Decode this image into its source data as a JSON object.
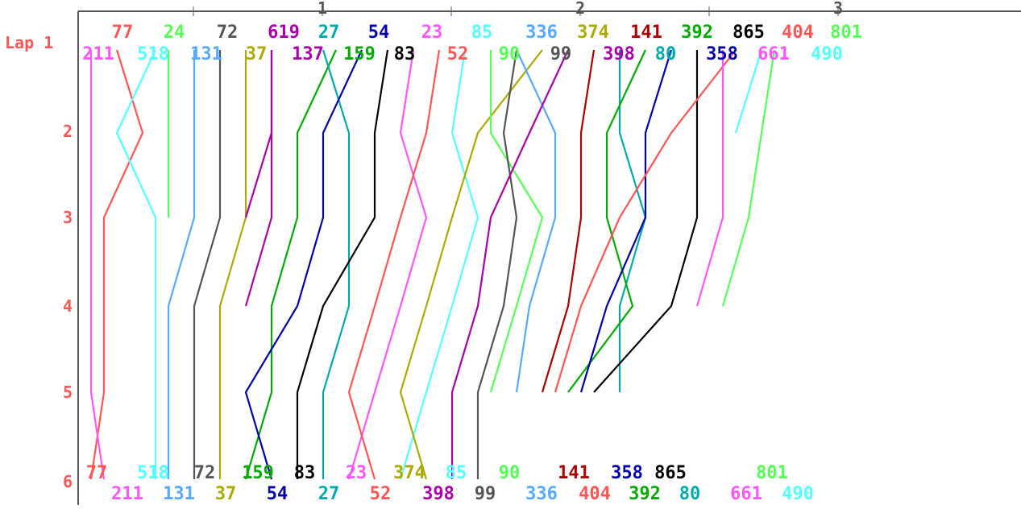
{
  "chart_data": {
    "type": "line",
    "title": "",
    "xlabel": "",
    "ylabel": "Lap",
    "y_label_text": "Lap 1",
    "y_ticks": [
      "2",
      "3",
      "4",
      "5",
      "6"
    ],
    "top_ticks": [
      "1",
      "2",
      "3"
    ],
    "y_color": "#ff5555",
    "top_numbers": [
      "77",
      "24",
      "72",
      "619",
      "27",
      "54",
      "23",
      "85",
      "336",
      "374",
      "141",
      "392",
      "865",
      "404",
      "801"
    ],
    "start_numbers": [
      "211",
      "518",
      "131",
      "37",
      "137",
      "159",
      "83",
      "52",
      "90",
      "99",
      "398",
      "80",
      "358",
      "661",
      "490"
    ],
    "end_row1": [
      "77",
      "518",
      "72",
      "159",
      "83",
      "23",
      "374",
      "85",
      "90",
      "141",
      "358",
      "865",
      "801"
    ],
    "end_row2": [
      "211",
      "131",
      "37",
      "54",
      "27",
      "52",
      "398",
      "99",
      "336",
      "404",
      "392",
      "80",
      "661",
      "490"
    ],
    "series": [
      {
        "name": "77",
        "color": "#ff5555",
        "slots": [
          3,
          5,
          2,
          2,
          2,
          1
        ]
      },
      {
        "name": "211",
        "color": "#ff55ff",
        "slots": [
          1,
          1,
          1,
          1,
          1,
          2
        ]
      },
      {
        "name": "518",
        "color": "#55ffff",
        "slots": [
          6,
          3,
          6,
          6,
          6,
          6
        ]
      },
      {
        "name": "24",
        "color": "#55ff55",
        "slots": [
          7,
          7,
          7
        ]
      },
      {
        "name": "131",
        "color": "#55aaff",
        "slots": [
          9,
          9,
          9,
          7,
          7,
          7
        ]
      },
      {
        "name": "72",
        "color": "#555555",
        "slots": [
          11,
          11,
          11,
          9,
          9,
          9
        ]
      },
      {
        "name": "37",
        "color": "#aaaa00",
        "slots": [
          13,
          13,
          13,
          11,
          11,
          11
        ]
      },
      {
        "name": "619",
        "color": "#aa00aa",
        "slots": [
          15,
          15,
          15,
          13
        ]
      },
      {
        "name": "137",
        "color": "#aa00aa",
        "slots": [
          15,
          15,
          13
        ]
      },
      {
        "name": "159",
        "color": "#00aa00",
        "slots": [
          20,
          17,
          17,
          15,
          15,
          13
        ]
      },
      {
        "name": "27",
        "color": "#00aaaa",
        "slots": [
          19,
          21,
          21,
          21,
          19,
          19
        ]
      },
      {
        "name": "54",
        "color": "#0000aa",
        "slots": [
          22,
          19,
          19,
          17,
          13,
          15
        ]
      },
      {
        "name": "83",
        "color": "#000000",
        "slots": [
          24,
          23,
          23,
          19,
          17,
          17
        ]
      },
      {
        "name": "23",
        "color": "#ff55ff",
        "slots": [
          26,
          25,
          27,
          25,
          23,
          21
        ]
      },
      {
        "name": "52",
        "color": "#ff5555",
        "slots": [
          28,
          27,
          25,
          23,
          21,
          23
        ]
      },
      {
        "name": "85",
        "color": "#55ffff",
        "slots": [
          30,
          29,
          31,
          29,
          27,
          25
        ]
      },
      {
        "name": "374",
        "color": "#aaaa00",
        "slots": [
          36,
          31,
          29,
          27,
          25,
          27
        ]
      },
      {
        "name": "90",
        "color": "#55ff55",
        "slots": [
          32,
          32,
          36,
          34,
          32
        ]
      },
      {
        "name": "99",
        "color": "#555555",
        "slots": [
          34,
          33,
          34,
          33,
          31,
          31
        ]
      },
      {
        "name": "336",
        "color": "#55aaff",
        "slots": [
          34,
          37,
          37,
          35,
          34
        ]
      },
      {
        "name": "398",
        "color": "#aa00aa",
        "slots": [
          38,
          35,
          32,
          31,
          29,
          29
        ]
      },
      {
        "name": "141",
        "color": "#aa0000",
        "slots": [
          40,
          39,
          39,
          38,
          36
        ]
      },
      {
        "name": "80",
        "color": "#00aaaa",
        "slots": [
          42,
          42,
          44,
          42,
          42
        ]
      },
      {
        "name": "392",
        "color": "#00aa00",
        "slots": [
          44,
          41,
          41,
          43,
          38
        ]
      },
      {
        "name": "358",
        "color": "#0000aa",
        "slots": [
          46,
          44,
          44,
          41,
          39
        ]
      },
      {
        "name": "865",
        "color": "#000000",
        "slots": [
          48,
          48,
          48,
          46,
          40
        ]
      },
      {
        "name": "404",
        "color": "#ff5555",
        "slots": [
          51,
          46,
          42,
          39,
          37
        ]
      },
      {
        "name": "661",
        "color": "#ff55ff",
        "slots": [
          50,
          50,
          50,
          48
        ]
      },
      {
        "name": "490",
        "color": "#55ffff",
        "slots": [
          53,
          51
        ]
      },
      {
        "name": "801",
        "color": "#55ff55",
        "slots": [
          54,
          53,
          52,
          50
        ]
      }
    ]
  }
}
